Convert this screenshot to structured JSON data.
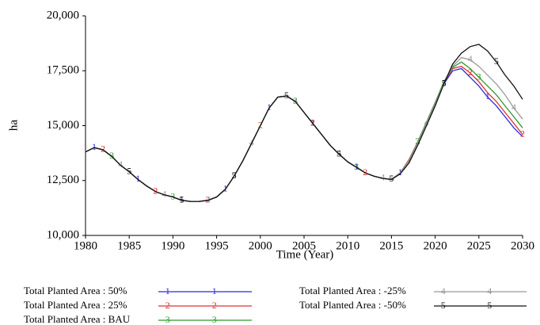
{
  "chart_data": {
    "type": "line",
    "x_label": "Time (Year)",
    "y_label": "ha",
    "xlim": [
      1980,
      2030
    ],
    "xticks": [
      1980,
      1985,
      1990,
      1995,
      2000,
      2005,
      2010,
      2015,
      2020,
      2025,
      2030
    ],
    "ylim": [
      10000,
      20000
    ],
    "yticks": [
      {
        "value": 10000,
        "label": "10,000"
      },
      {
        "value": 12500,
        "label": "12,500"
      },
      {
        "value": 15000,
        "label": "15,000"
      },
      {
        "value": 17500,
        "label": "17,500"
      },
      {
        "value": 20000,
        "label": "20,000"
      }
    ],
    "x": [
      1980,
      1981,
      1982,
      1983,
      1984,
      1985,
      1986,
      1987,
      1988,
      1989,
      1990,
      1991,
      1992,
      1993,
      1994,
      1995,
      1996,
      1997,
      1998,
      1999,
      2000,
      2001,
      2002,
      2003,
      2004,
      2005,
      2006,
      2007,
      2008,
      2009,
      2010,
      2011,
      2012,
      2013,
      2014,
      2015,
      2016,
      2017,
      2018,
      2019,
      2020,
      2021,
      2022,
      2023,
      2024,
      2025,
      2026,
      2027,
      2028,
      2029,
      2030
    ],
    "series": [
      {
        "name": "Total Planted Area : 50%",
        "marker": "1",
        "color": "#2b2bd9",
        "values": [
          13800,
          14000,
          13900,
          13600,
          13200,
          12900,
          12550,
          12250,
          12000,
          11850,
          11750,
          11600,
          11550,
          11550,
          11600,
          11750,
          12100,
          12700,
          13400,
          14200,
          15000,
          15800,
          16300,
          16350,
          16100,
          15600,
          15100,
          14600,
          14100,
          13700,
          13350,
          13100,
          12850,
          12700,
          12600,
          12550,
          12850,
          13400,
          14200,
          15100,
          16000,
          16900,
          17500,
          17600,
          17200,
          16800,
          16300,
          15900,
          15400,
          14900,
          14500
        ]
      },
      {
        "name": "Total Planted Area : 25%",
        "marker": "2",
        "color": "#e03030",
        "values": [
          13800,
          14000,
          13900,
          13600,
          13200,
          12900,
          12550,
          12250,
          12000,
          11850,
          11750,
          11600,
          11550,
          11550,
          11600,
          11750,
          12100,
          12700,
          13400,
          14200,
          15000,
          15800,
          16300,
          16350,
          16100,
          15600,
          15100,
          14600,
          14100,
          13700,
          13350,
          13100,
          12850,
          12700,
          12600,
          12550,
          12850,
          13450,
          14250,
          15150,
          16050,
          16950,
          17600,
          17700,
          17400,
          17000,
          16500,
          16100,
          15600,
          15100,
          14600
        ]
      },
      {
        "name": "Total Planted Area : BAU",
        "marker": "3",
        "color": "#2a9a2a",
        "values": [
          13800,
          14000,
          13900,
          13600,
          13200,
          12900,
          12550,
          12250,
          12000,
          11850,
          11750,
          11600,
          11550,
          11550,
          11600,
          11750,
          12100,
          12700,
          13400,
          14200,
          15000,
          15800,
          16300,
          16350,
          16100,
          15600,
          15100,
          14600,
          14100,
          13700,
          13350,
          13100,
          12850,
          12700,
          12600,
          12550,
          12850,
          13400,
          14250,
          15150,
          16050,
          17000,
          17650,
          17900,
          17600,
          17200,
          16800,
          16400,
          15900,
          15400,
          14900
        ]
      },
      {
        "name": "Total Planted Area : -25%",
        "marker": "4",
        "color": "#999999",
        "values": [
          13800,
          14000,
          13900,
          13600,
          13200,
          12900,
          12550,
          12250,
          12000,
          11850,
          11750,
          11600,
          11550,
          11550,
          11600,
          11750,
          12100,
          12700,
          13400,
          14200,
          15000,
          15800,
          16300,
          16350,
          16100,
          15600,
          15100,
          14600,
          14100,
          13700,
          13350,
          13100,
          12850,
          12700,
          12600,
          12550,
          12850,
          13400,
          14200,
          15100,
          16000,
          16950,
          17700,
          18100,
          18000,
          17700,
          17300,
          16900,
          16400,
          15800,
          15300
        ]
      },
      {
        "name": "Total Planted Area : -50%",
        "marker": "5",
        "color": "#111111",
        "values": [
          13800,
          14000,
          13900,
          13600,
          13200,
          12900,
          12550,
          12250,
          12000,
          11850,
          11750,
          11600,
          11550,
          11550,
          11600,
          11750,
          12100,
          12700,
          13400,
          14200,
          15000,
          15800,
          16300,
          16350,
          16100,
          15600,
          15100,
          14600,
          14100,
          13700,
          13350,
          13100,
          12850,
          12700,
          12600,
          12550,
          12800,
          13300,
          14100,
          15000,
          15900,
          16900,
          17800,
          18300,
          18600,
          18700,
          18400,
          17900,
          17300,
          16800,
          16200
        ]
      }
    ]
  }
}
